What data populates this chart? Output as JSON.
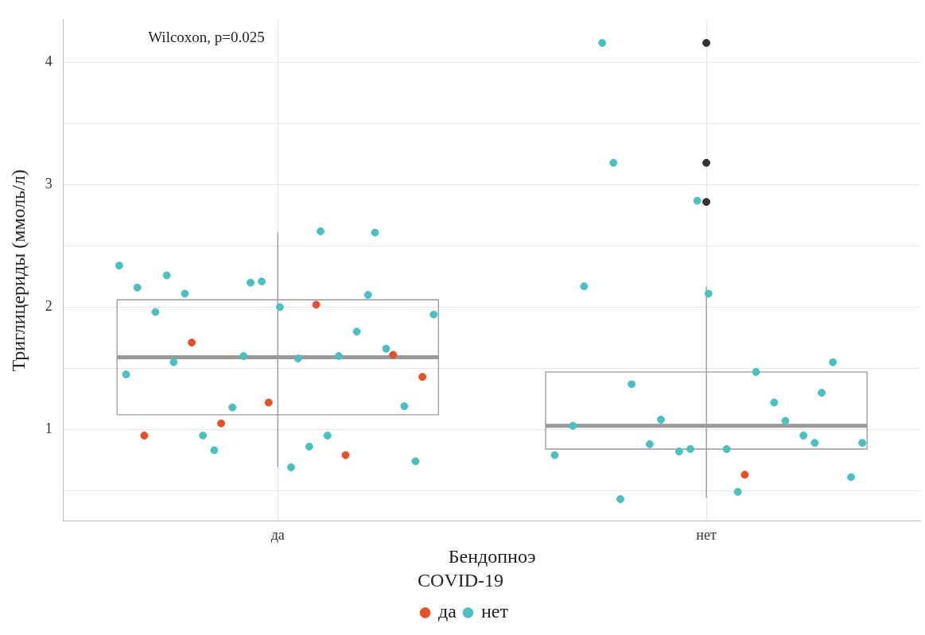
{
  "chart_data": {
    "type": "box",
    "xlabel": "Бендопноэ",
    "ylabel": "Триглицериды (ммоль/л)",
    "legend_title": "COVID-19",
    "legend": "bottom",
    "grid": true,
    "annotations": [
      "Wilcoxon, p=0.025"
    ],
    "categories": [
      "да",
      "нет"
    ],
    "ylim": [
      0.25,
      4.35
    ],
    "yticks": [
      {
        "value": 0.5,
        "label": null
      },
      1,
      {
        "value": 1.5,
        "label": null
      },
      2,
      {
        "value": 2.5,
        "label": null
      },
      3,
      {
        "value": 3.5,
        "label": null
      },
      4
    ],
    "boxes": [
      {
        "low": 0.69,
        "q1": 1.12,
        "median": 1.59,
        "q3": 2.06,
        "high": 2.61
      },
      {
        "low": 0.44,
        "q1": 0.84,
        "median": 1.03,
        "q3": 1.47,
        "high": 2.17,
        "outliers": [
          4.16,
          3.18,
          2.86
        ]
      }
    ],
    "series": [
      {
        "name": "да",
        "type": "scatter",
        "color": "#e4502a",
        "x": [
          "да",
          "да",
          "да",
          "да",
          "да",
          "да",
          "да",
          "да",
          "нет"
        ],
        "values": [
          2.02,
          1.71,
          1.61,
          1.22,
          0.95,
          0.79,
          1.05,
          1.43,
          0.63
        ]
      },
      {
        "name": "нет",
        "type": "scatter",
        "color": "#4cc0c0",
        "x": [
          "да",
          "да",
          "да",
          "да",
          "да",
          "да",
          "да",
          "да",
          "да",
          "да",
          "да",
          "да",
          "да",
          "да",
          "да",
          "да",
          "да",
          "да",
          "да",
          "да",
          "да",
          "да",
          "да",
          "да",
          "да",
          "да",
          "да",
          "нет",
          "нет",
          "нет",
          "нет",
          "нет",
          "нет",
          "нет",
          "нет",
          "нет",
          "нет",
          "нет",
          "нет",
          "нет",
          "нет",
          "нет",
          "нет",
          "нет",
          "нет",
          "нет",
          "нет",
          "нет",
          "нет",
          "нет",
          "нет"
        ],
        "values": [
          1.58,
          1.55,
          2.61,
          2.2,
          1.45,
          0.95,
          0.95,
          1.19,
          2.0,
          1.96,
          1.8,
          1.18,
          1.94,
          0.86,
          2.11,
          1.66,
          2.21,
          2.16,
          1.6,
          0.83,
          0.74,
          0.69,
          2.26,
          2.1,
          1.6,
          2.34,
          2.62,
          0.43,
          1.3,
          2.87,
          1.03,
          1.22,
          0.88,
          0.61,
          0.84,
          4.16,
          0.95,
          0.82,
          0.79,
          1.47,
          1.37,
          1.55,
          2.11,
          2.17,
          1.07,
          1.08,
          0.89,
          0.49,
          3.18,
          0.89,
          0.84
        ]
      }
    ]
  }
}
